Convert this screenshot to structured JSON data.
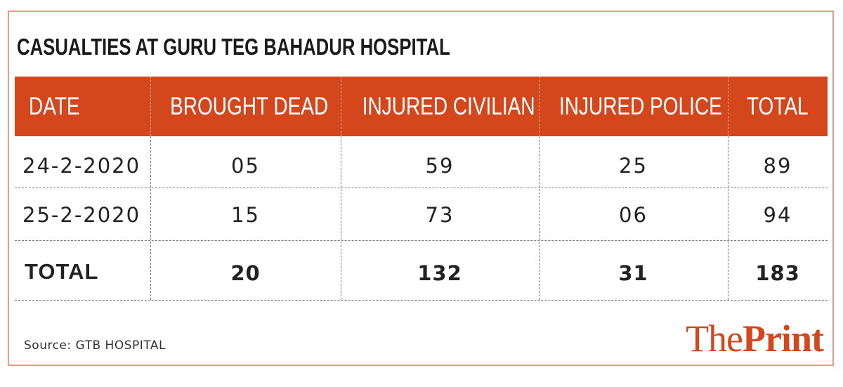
{
  "title": "CASUALTIES AT GURU TEG BAHADUR HOSPITAL",
  "chart_data": {
    "type": "table",
    "columns": [
      "DATE",
      "BROUGHT DEAD",
      "INJURED CIVILIAN",
      "INJURED POLICE",
      "TOTAL"
    ],
    "rows": [
      [
        "24-2-2020",
        "05",
        "59",
        "25",
        "89"
      ],
      [
        "25-2-2020",
        "15",
        "73",
        "06",
        "94"
      ],
      [
        "TOTAL",
        "20",
        "132",
        "31",
        "183"
      ]
    ]
  },
  "source": "Source: GTB HOSPITAL",
  "logo": {
    "the": "The",
    "print": "Print"
  },
  "colors": {
    "header_bg": "#d4471d",
    "border": "#ec9a85",
    "logo": "#d4471d"
  }
}
